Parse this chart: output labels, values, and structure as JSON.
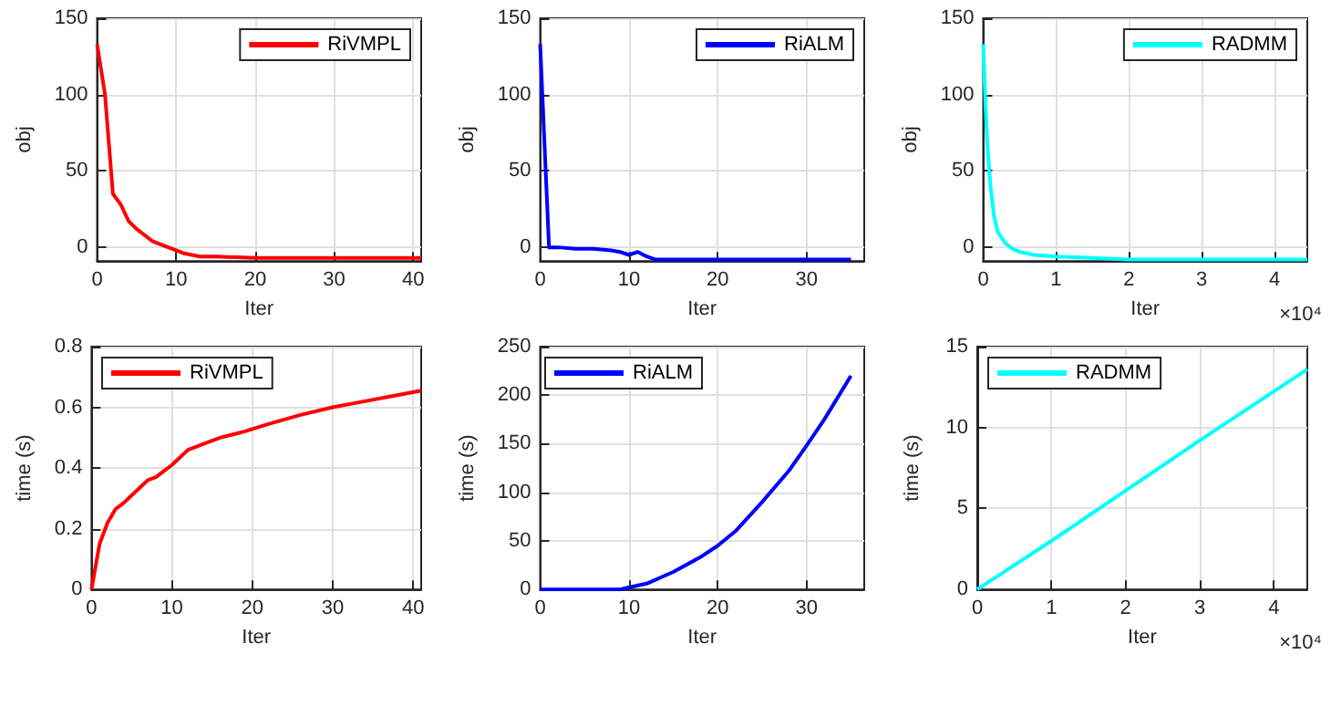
{
  "chart_data": [
    {
      "type": "line",
      "xlabel": "Iter",
      "ylabel": "obj",
      "xlim": [
        0,
        41
      ],
      "ylim": [
        -9,
        150
      ],
      "xticks": [
        0,
        10,
        20,
        30,
        40
      ],
      "yticks": [
        0,
        50,
        100,
        150
      ],
      "grid": true,
      "legend": "top right",
      "marker": "none",
      "line_style": "solid",
      "series": [
        {
          "name": "RiVMPL",
          "color": "#ff0000",
          "x": [
            0,
            1,
            2,
            3,
            4,
            5,
            6,
            7,
            8,
            9,
            10,
            11,
            12,
            13,
            15,
            20,
            25,
            30,
            35,
            41
          ],
          "values": [
            133,
            100,
            35,
            28,
            17,
            12,
            8,
            4,
            2,
            0,
            -2,
            -4,
            -5,
            -6,
            -6,
            -7,
            -7,
            -7,
            -7,
            -7
          ]
        }
      ]
    },
    {
      "type": "line",
      "xlabel": "Iter",
      "ylabel": "obj",
      "xlim": [
        0,
        36.5
      ],
      "ylim": [
        -9,
        150
      ],
      "xticks": [
        0,
        10,
        20,
        30
      ],
      "yticks": [
        0,
        50,
        100,
        150
      ],
      "grid": true,
      "legend": "top right",
      "marker": "none",
      "line_style": "solid",
      "series": [
        {
          "name": "RiALM",
          "color": "#0000ff",
          "x": [
            0,
            1,
            2,
            4,
            6,
            8,
            9,
            10,
            11,
            12,
            13,
            14,
            20,
            25,
            30,
            35
          ],
          "values": [
            133,
            0,
            0,
            -1,
            -1,
            -2,
            -3,
            -5,
            -3,
            -6,
            -8,
            -8,
            -8,
            -8,
            -8,
            -8
          ]
        }
      ]
    },
    {
      "type": "line",
      "xlabel": "Iter",
      "ylabel": "obj",
      "xlim": [
        0,
        4.45
      ],
      "ylim": [
        -9,
        150
      ],
      "xticks": [
        0,
        1,
        2,
        3,
        4
      ],
      "yticks": [
        0,
        50,
        100,
        150
      ],
      "grid": true,
      "legend": "top right",
      "marker": "none",
      "line_style": "solid",
      "annotations": [
        "×10⁴"
      ],
      "series": [
        {
          "name": "RADMM",
          "color": "#00ffff",
          "x": [
            0,
            0.03,
            0.06,
            0.1,
            0.15,
            0.2,
            0.3,
            0.4,
            0.5,
            0.7,
            1,
            1.5,
            2,
            3,
            4.45
          ],
          "values": [
            133,
            95,
            65,
            40,
            20,
            10,
            3,
            -1,
            -3,
            -5,
            -6,
            -7,
            -8,
            -8,
            -8
          ]
        }
      ]
    },
    {
      "type": "line",
      "xlabel": "Iter",
      "ylabel": "time (s)",
      "xlim": [
        0,
        41
      ],
      "ylim": [
        0,
        0.8
      ],
      "xticks": [
        0,
        10,
        20,
        30,
        40
      ],
      "yticks": [
        0,
        0.2,
        0.4,
        0.6,
        0.8
      ],
      "grid": true,
      "legend": "top left",
      "marker": "none",
      "line_style": "solid",
      "series": [
        {
          "name": "RiVMPL",
          "color": "#ff0000",
          "x": [
            0,
            1,
            2,
            3,
            4,
            5,
            6,
            7,
            8,
            9,
            10,
            11,
            12,
            13,
            14,
            16,
            19,
            22,
            26,
            30,
            34,
            38,
            41
          ],
          "values": [
            0,
            0.15,
            0.22,
            0.265,
            0.285,
            0.31,
            0.335,
            0.36,
            0.37,
            0.39,
            0.41,
            0.435,
            0.46,
            0.47,
            0.48,
            0.5,
            0.52,
            0.545,
            0.575,
            0.6,
            0.62,
            0.64,
            0.655
          ]
        }
      ]
    },
    {
      "type": "line",
      "xlabel": "Iter",
      "ylabel": "time (s)",
      "xlim": [
        0,
        36.5
      ],
      "ylim": [
        0,
        250
      ],
      "xticks": [
        0,
        10,
        20,
        30
      ],
      "yticks": [
        0,
        50,
        100,
        150,
        200,
        250
      ],
      "grid": true,
      "legend": "top left",
      "marker": "none",
      "line_style": "solid",
      "series": [
        {
          "name": "RiALM",
          "color": "#0000ff",
          "x": [
            0,
            5,
            9,
            10,
            12,
            15,
            18,
            20,
            22,
            25,
            28,
            30,
            32,
            35
          ],
          "values": [
            0,
            0,
            0,
            2,
            6,
            18,
            33,
            45,
            60,
            90,
            122,
            148,
            175,
            220
          ]
        }
      ]
    },
    {
      "type": "line",
      "xlabel": "Iter",
      "ylabel": "time (s)",
      "xlim": [
        0,
        4.45
      ],
      "ylim": [
        0,
        15
      ],
      "xticks": [
        0,
        1,
        2,
        3,
        4
      ],
      "yticks": [
        0,
        5,
        10,
        15
      ],
      "grid": true,
      "legend": "top left",
      "marker": "none",
      "line_style": "solid",
      "annotations": [
        "×10⁴"
      ],
      "series": [
        {
          "name": "RADMM",
          "color": "#00ffff",
          "x": [
            0,
            1,
            2,
            3,
            4.45
          ],
          "values": [
            0,
            3,
            6.1,
            9.2,
            13.6
          ]
        }
      ]
    }
  ]
}
